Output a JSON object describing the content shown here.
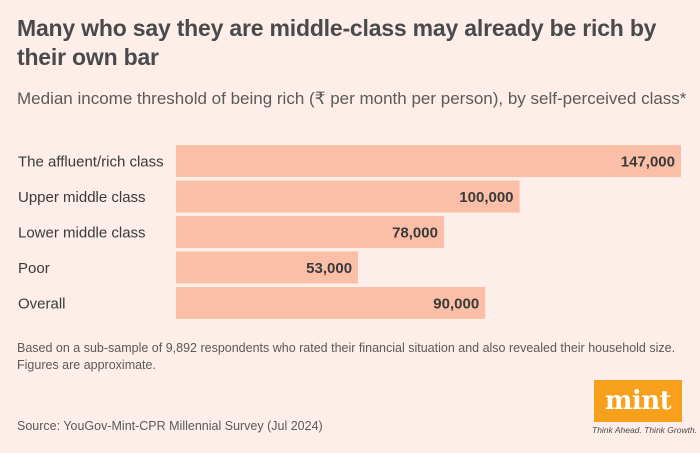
{
  "title": "Many who say they are middle-class may already be rich by their own bar",
  "subtitle": "Median income threshold of being rich (₹ per month per person), by self-perceived class*",
  "note": "Based on a sub-sample of 9,892 respondents who rated their financial situation and also revealed their household size. Figures are approximate.",
  "source": "Source: YouGov-Mint-CPR Millennial Survey (Jul 2024)",
  "logo": {
    "name": "mint",
    "tagline": "Think Ahead. Think Growth."
  },
  "colors": {
    "bar": "#fbbea7",
    "background": "#fdeee9",
    "logo": "#f7a01b"
  },
  "chart_data": {
    "type": "bar",
    "orientation": "horizontal",
    "categories": [
      "The affluent/rich class",
      "Upper middle class",
      "Lower middle class",
      "Poor",
      "Overall"
    ],
    "values": [
      147000,
      100000,
      78000,
      53000,
      90000
    ],
    "value_labels": [
      "147,000",
      "100,000",
      "78,000",
      "53,000",
      "90,000"
    ],
    "xlim": [
      0,
      147000
    ],
    "grid": false,
    "legend": "none"
  }
}
